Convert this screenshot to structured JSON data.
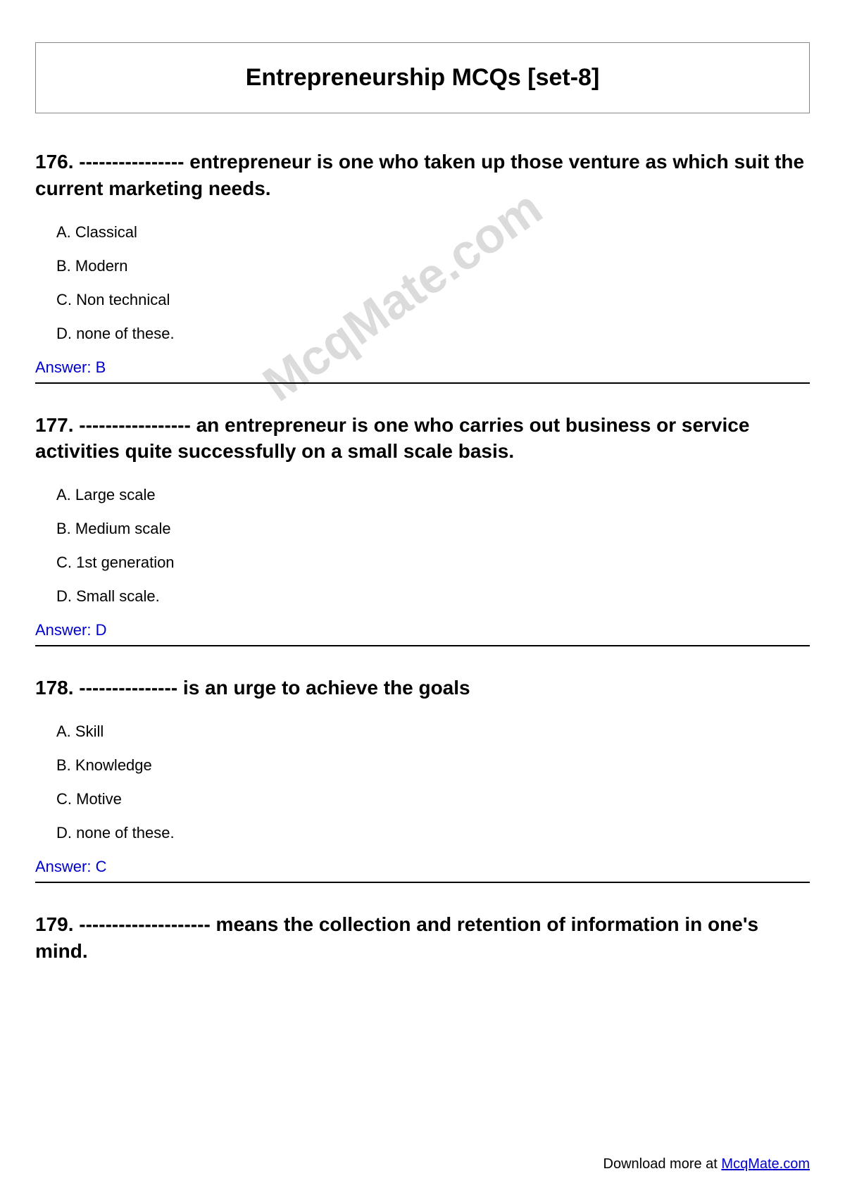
{
  "title": "Entrepreneurship MCQs [set-8]",
  "watermark": "McqMate.com",
  "questions": [
    {
      "number": "176.",
      "text": "---------------- entrepreneur is one who taken up those venture as which suit the current marketing needs.",
      "options": [
        "A. Classical",
        "B. Modern",
        "C. Non technical",
        "D. none of these."
      ],
      "answer": "Answer: B"
    },
    {
      "number": "177.",
      "text": "----------------- an entrepreneur is one who carries out business or service activities quite successfully on a small scale basis.",
      "options": [
        "A. Large scale",
        "B. Medium scale",
        "C. 1st generation",
        "D. Small scale."
      ],
      "answer": "Answer: D"
    },
    {
      "number": "178.",
      "text": "--------------- is an urge to achieve the goals",
      "options": [
        "A. Skill",
        "B. Knowledge",
        "C. Motive",
        "D. none of these."
      ],
      "answer": "Answer: C"
    },
    {
      "number": "179.",
      "text": "-------------------- means the collection and retention of information in one's mind.",
      "options": [],
      "answer": ""
    }
  ],
  "footer": {
    "prefix": "Download more at ",
    "link": "McqMate.com"
  }
}
